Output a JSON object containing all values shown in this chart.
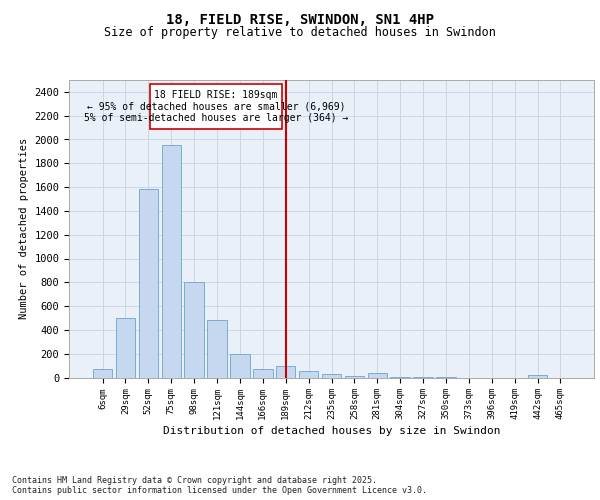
{
  "title1": "18, FIELD RISE, SWINDON, SN1 4HP",
  "title2": "Size of property relative to detached houses in Swindon",
  "xlabel": "Distribution of detached houses by size in Swindon",
  "ylabel": "Number of detached properties",
  "categories": [
    "6sqm",
    "29sqm",
    "52sqm",
    "75sqm",
    "98sqm",
    "121sqm",
    "144sqm",
    "166sqm",
    "189sqm",
    "212sqm",
    "235sqm",
    "258sqm",
    "281sqm",
    "304sqm",
    "327sqm",
    "350sqm",
    "373sqm",
    "396sqm",
    "419sqm",
    "442sqm",
    "465sqm"
  ],
  "values": [
    75,
    500,
    1580,
    1950,
    800,
    480,
    200,
    70,
    100,
    55,
    30,
    15,
    40,
    5,
    5,
    5,
    0,
    0,
    0,
    20,
    0
  ],
  "bar_color": "#c5d8f0",
  "bar_edge_color": "#7aadd4",
  "grid_color": "#c8d8e8",
  "bg_color": "#eaf0f8",
  "vertical_line_x": 8,
  "vertical_line_color": "#cc0000",
  "annotation_line1": "18 FIELD RISE: 189sqm",
  "annotation_line2": "← 95% of detached houses are smaller (6,969)",
  "annotation_line3": "5% of semi-detached houses are larger (364) →",
  "annotation_box_color": "#cc0000",
  "footer": "Contains HM Land Registry data © Crown copyright and database right 2025.\nContains public sector information licensed under the Open Government Licence v3.0.",
  "ylim": [
    0,
    2500
  ],
  "yticks": [
    0,
    200,
    400,
    600,
    800,
    1000,
    1200,
    1400,
    1600,
    1800,
    2000,
    2200,
    2400
  ],
  "title1_fontsize": 10,
  "title2_fontsize": 8.5,
  "ylabel_fontsize": 7.5,
  "xlabel_fontsize": 8,
  "ytick_fontsize": 7.5,
  "xtick_fontsize": 6.5,
  "ann_fontsize": 7,
  "footer_fontsize": 6
}
